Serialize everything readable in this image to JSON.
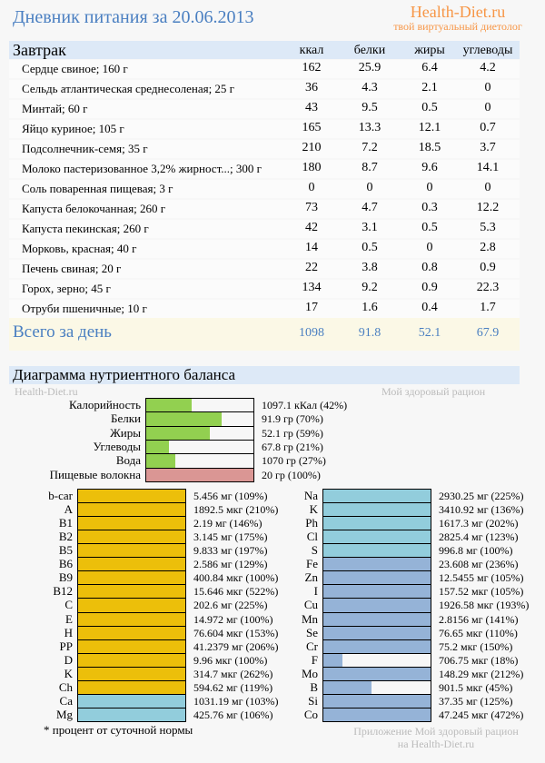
{
  "header": {
    "title": "Дневник питания за 20.06.2013",
    "brand": "Health-Diet.ru",
    "brand_tagline": "твой виртуальный диетолог"
  },
  "meal": {
    "name": "Завтрак",
    "columns": [
      "ккал",
      "белки",
      "жиры",
      "углеводы"
    ],
    "rows": [
      {
        "name": "Сердце свиное; 160 г",
        "v": [
          "162",
          "25.9",
          "6.4",
          "4.2"
        ]
      },
      {
        "name": "Сельдь атлантическая среднесоленая; 25 г",
        "v": [
          "36",
          "4.3",
          "2.1",
          "0"
        ]
      },
      {
        "name": "Минтай; 60 г",
        "v": [
          "43",
          "9.5",
          "0.5",
          "0"
        ]
      },
      {
        "name": "Яйцо куриное; 105 г",
        "v": [
          "165",
          "13.3",
          "12.1",
          "0.7"
        ]
      },
      {
        "name": "Подсолнечник-семя; 35 г",
        "v": [
          "210",
          "7.2",
          "18.5",
          "3.7"
        ]
      },
      {
        "name": "Молоко пастеризованное 3,2% жирност...; 300 г",
        "v": [
          "180",
          "8.7",
          "9.6",
          "14.1"
        ]
      },
      {
        "name": "Соль поваренная пищевая; 3 г",
        "v": [
          "0",
          "0",
          "0",
          "0"
        ]
      },
      {
        "name": "Капуста белокочанная; 260 г",
        "v": [
          "73",
          "4.7",
          "0.3",
          "12.2"
        ]
      },
      {
        "name": "Капуста пекинская; 260 г",
        "v": [
          "42",
          "3.1",
          "0.5",
          "5.3"
        ]
      },
      {
        "name": "Морковь, красная; 40 г",
        "v": [
          "14",
          "0.5",
          "0",
          "2.8"
        ]
      },
      {
        "name": "Печень свиная; 20 г",
        "v": [
          "22",
          "3.8",
          "0.8",
          "0.9"
        ]
      },
      {
        "name": "Горох, зерно; 45 г",
        "v": [
          "134",
          "9.2",
          "0.9",
          "22.3"
        ]
      },
      {
        "name": "Отруби пшеничные; 10 г",
        "v": [
          "17",
          "1.6",
          "0.4",
          "1.7"
        ]
      }
    ]
  },
  "totals": {
    "label": "Всего за день",
    "v": [
      "1098",
      "91.8",
      "52.1",
      "67.9"
    ]
  },
  "diagram": {
    "title": "Диаграмма нутриентного баланса",
    "wm_left": "Health-Diet.ru",
    "wm_right": "Мой здоровый рацион",
    "colors": {
      "green": "#92d050",
      "pink": "#da9694",
      "yellow": "#ecbf0a",
      "cyan": "#92cddc",
      "blue": "#95b3d7"
    },
    "macros": [
      {
        "label": "Калорийность",
        "value": "1097.1 кКал (42%)",
        "pct": 42,
        "color": "green"
      },
      {
        "label": "Белки",
        "value": "91.9 гр (70%)",
        "pct": 70,
        "color": "green"
      },
      {
        "label": "Жиры",
        "value": "52.1 гр (59%)",
        "pct": 59,
        "color": "green"
      },
      {
        "label": "Углеводы",
        "value": "67.8 гр (21%)",
        "pct": 21,
        "color": "green"
      },
      {
        "label": "Вода",
        "value": "1070 гр (27%)",
        "pct": 27,
        "color": "green"
      },
      {
        "label": "Пищевые волокна",
        "value": "20 гр (100%)",
        "pct": 100,
        "color": "pink"
      }
    ],
    "left": [
      {
        "label": "b-car",
        "value": "5.456 мг (109%)",
        "pct": 109,
        "color": "yellow"
      },
      {
        "label": "A",
        "value": "1892.5 мкг (210%)",
        "pct": 210,
        "color": "yellow"
      },
      {
        "label": "B1",
        "value": "2.19 мг (146%)",
        "pct": 146,
        "color": "yellow"
      },
      {
        "label": "B2",
        "value": "3.145 мг (175%)",
        "pct": 175,
        "color": "yellow"
      },
      {
        "label": "B5",
        "value": "9.833 мг (197%)",
        "pct": 197,
        "color": "yellow"
      },
      {
        "label": "B6",
        "value": "2.586 мг (129%)",
        "pct": 129,
        "color": "yellow"
      },
      {
        "label": "B9",
        "value": "400.84 мкг (100%)",
        "pct": 100,
        "color": "yellow"
      },
      {
        "label": "B12",
        "value": "15.646 мкг (522%)",
        "pct": 522,
        "color": "yellow"
      },
      {
        "label": "C",
        "value": "202.6 мг (225%)",
        "pct": 225,
        "color": "yellow"
      },
      {
        "label": "E",
        "value": "14.972 мг (100%)",
        "pct": 100,
        "color": "yellow"
      },
      {
        "label": "H",
        "value": "76.604 мкг (153%)",
        "pct": 153,
        "color": "yellow"
      },
      {
        "label": "PP",
        "value": "41.2379 мг (206%)",
        "pct": 206,
        "color": "yellow"
      },
      {
        "label": "D",
        "value": "9.96 мкг (100%)",
        "pct": 100,
        "color": "yellow"
      },
      {
        "label": "K",
        "value": "314.7 мкг (262%)",
        "pct": 262,
        "color": "yellow"
      },
      {
        "label": "Ch",
        "value": "594.62 мг (119%)",
        "pct": 119,
        "color": "yellow"
      },
      {
        "label": "Ca",
        "value": "1031.19 мг (103%)",
        "pct": 103,
        "color": "cyan"
      },
      {
        "label": "Mg",
        "value": "425.76 мг (106%)",
        "pct": 106,
        "color": "cyan"
      }
    ],
    "right": [
      {
        "label": "Na",
        "value": "2930.25 мг (225%)",
        "pct": 225,
        "color": "cyan"
      },
      {
        "label": "K",
        "value": "3410.92 мг (136%)",
        "pct": 136,
        "color": "cyan"
      },
      {
        "label": "Ph",
        "value": "1617.3 мг (202%)",
        "pct": 202,
        "color": "cyan"
      },
      {
        "label": "Cl",
        "value": "2825.4 мг (123%)",
        "pct": 123,
        "color": "cyan"
      },
      {
        "label": "S",
        "value": "996.8 мг (100%)",
        "pct": 100,
        "color": "cyan"
      },
      {
        "label": "Fe",
        "value": "23.608 мг (236%)",
        "pct": 236,
        "color": "blue"
      },
      {
        "label": "Zn",
        "value": "12.5455 мг (105%)",
        "pct": 105,
        "color": "blue"
      },
      {
        "label": "I",
        "value": "157.52 мкг (105%)",
        "pct": 105,
        "color": "blue"
      },
      {
        "label": "Cu",
        "value": "1926.58 мкг (193%)",
        "pct": 193,
        "color": "blue"
      },
      {
        "label": "Mn",
        "value": "2.8156 мг (141%)",
        "pct": 141,
        "color": "blue"
      },
      {
        "label": "Se",
        "value": "76.65 мкг (110%)",
        "pct": 110,
        "color": "blue"
      },
      {
        "label": "Cr",
        "value": "75.2 мкг (150%)",
        "pct": 150,
        "color": "blue"
      },
      {
        "label": "F",
        "value": "706.75 мкг (18%)",
        "pct": 18,
        "color": "blue"
      },
      {
        "label": "Mo",
        "value": "148.29 мкг (212%)",
        "pct": 212,
        "color": "blue"
      },
      {
        "label": "B",
        "value": "901.5 мкг (45%)",
        "pct": 45,
        "color": "blue"
      },
      {
        "label": "Si",
        "value": "37.35 мг (125%)",
        "pct": 125,
        "color": "blue"
      },
      {
        "label": "Co",
        "value": "47.245 мкг (472%)",
        "pct": 472,
        "color": "blue"
      }
    ],
    "footnote": "* процент от суточной нормы",
    "wm_bottom1": "Приложение Мой здоровый рацион",
    "wm_bottom2": "на Health-Diet.ru"
  }
}
